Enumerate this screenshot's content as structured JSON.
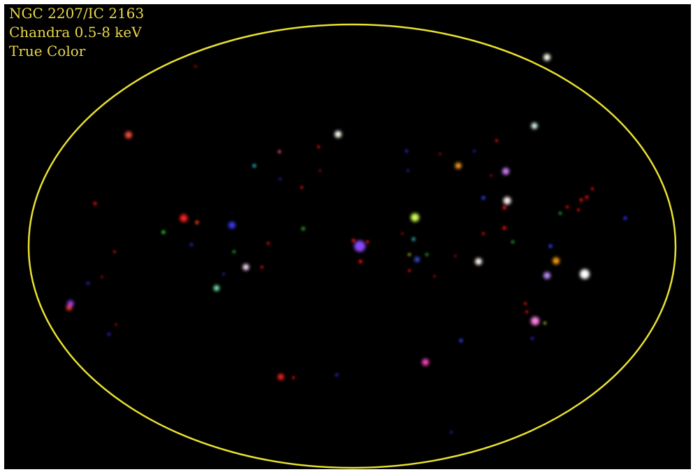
{
  "image": {
    "caption_lines": [
      "NGC 2207/IC 2163",
      "Chandra 0.5-8 keV",
      "True Color"
    ],
    "caption_color": "#e8d84a",
    "background_color": "#000000",
    "ellipse_color": "#e8e030"
  },
  "sources": [
    {
      "name": "white-source",
      "color": "#fffff0",
      "size": "large"
    },
    {
      "name": "red-source",
      "color": "#ff3030",
      "size": "large"
    },
    {
      "name": "blue-source",
      "color": "#3a3aff",
      "size": "medium"
    },
    {
      "name": "green-source",
      "color": "#b8ff30",
      "size": "large"
    },
    {
      "name": "magenta-source",
      "color": "#ff40c0",
      "size": "medium"
    },
    {
      "name": "orange-source",
      "color": "#ffa020",
      "size": "medium"
    }
  ]
}
